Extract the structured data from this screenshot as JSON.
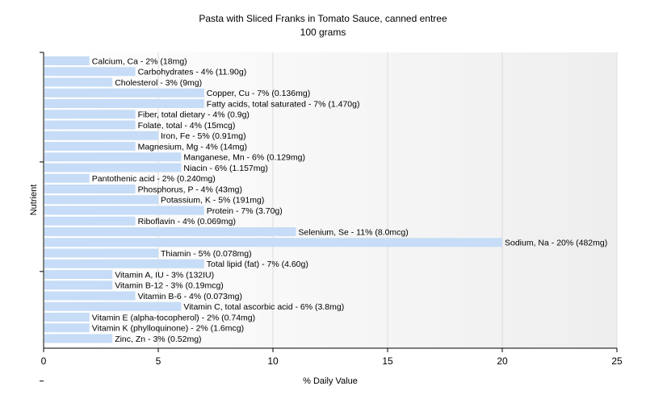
{
  "chart_data": {
    "type": "bar",
    "orientation": "horizontal",
    "title": "Pasta with Sliced Franks in Tomato Sauce, canned entree",
    "subtitle": "100 grams",
    "xlabel": "% Daily Value",
    "ylabel": "Nutrient",
    "xlim": [
      0,
      25
    ],
    "xticks": [
      "0",
      "5",
      "10",
      "15",
      "20",
      "25"
    ],
    "grid": true,
    "bar_color": "#c6dcf7",
    "bars": [
      {
        "name": "Calcium, Ca",
        "value": 2,
        "label": "Calcium, Ca - 2% (18mg)"
      },
      {
        "name": "Carbohydrates",
        "value": 4,
        "label": "Carbohydrates - 4% (11.90g)"
      },
      {
        "name": "Cholesterol",
        "value": 3,
        "label": "Cholesterol - 3% (9mg)"
      },
      {
        "name": "Copper, Cu",
        "value": 7,
        "label": "Copper, Cu - 7% (0.136mg)"
      },
      {
        "name": "Fatty acids, total saturated",
        "value": 7,
        "label": "Fatty acids, total saturated - 7% (1.470g)"
      },
      {
        "name": "Fiber, total dietary",
        "value": 4,
        "label": "Fiber, total dietary - 4% (0.9g)"
      },
      {
        "name": "Folate, total",
        "value": 4,
        "label": "Folate, total - 4% (15mcg)"
      },
      {
        "name": "Iron, Fe",
        "value": 5,
        "label": "Iron, Fe - 5% (0.91mg)"
      },
      {
        "name": "Magnesium, Mg",
        "value": 4,
        "label": "Magnesium, Mg - 4% (14mg)"
      },
      {
        "name": "Manganese, Mn",
        "value": 6,
        "label": "Manganese, Mn - 6% (0.129mg)"
      },
      {
        "name": "Niacin",
        "value": 6,
        "label": "Niacin - 6% (1.157mg)"
      },
      {
        "name": "Pantothenic acid",
        "value": 2,
        "label": "Pantothenic acid - 2% (0.240mg)"
      },
      {
        "name": "Phosphorus, P",
        "value": 4,
        "label": "Phosphorus, P - 4% (43mg)"
      },
      {
        "name": "Potassium, K",
        "value": 5,
        "label": "Potassium, K - 5% (191mg)"
      },
      {
        "name": "Protein",
        "value": 7,
        "label": "Protein - 7% (3.70g)"
      },
      {
        "name": "Riboflavin",
        "value": 4,
        "label": "Riboflavin - 4% (0.069mg)"
      },
      {
        "name": "Selenium, Se",
        "value": 11,
        "label": "Selenium, Se - 11% (8.0mcg)"
      },
      {
        "name": "Sodium, Na",
        "value": 20,
        "label": "Sodium, Na - 20% (482mg)"
      },
      {
        "name": "Thiamin",
        "value": 5,
        "label": "Thiamin - 5% (0.078mg)"
      },
      {
        "name": "Total lipid (fat)",
        "value": 7,
        "label": "Total lipid (fat) - 7% (4.60g)"
      },
      {
        "name": "Vitamin A, IU",
        "value": 3,
        "label": "Vitamin A, IU - 3% (132IU)"
      },
      {
        "name": "Vitamin B-12",
        "value": 3,
        "label": "Vitamin B-12 - 3% (0.19mcg)"
      },
      {
        "name": "Vitamin B-6",
        "value": 4,
        "label": "Vitamin B-6 - 4% (0.073mg)"
      },
      {
        "name": "Vitamin C, total ascorbic acid",
        "value": 6,
        "label": "Vitamin C, total ascorbic acid - 6% (3.8mg)"
      },
      {
        "name": "Vitamin E (alpha-tocopherol)",
        "value": 2,
        "label": "Vitamin E (alpha-tocopherol) - 2% (0.74mg)"
      },
      {
        "name": "Vitamin K (phylloquinone)",
        "value": 2,
        "label": "Vitamin K (phylloquinone) - 2% (1.6mcg)"
      },
      {
        "name": "Zinc, Zn",
        "value": 3,
        "label": "Zinc, Zn - 3% (0.52mg)"
      }
    ]
  }
}
